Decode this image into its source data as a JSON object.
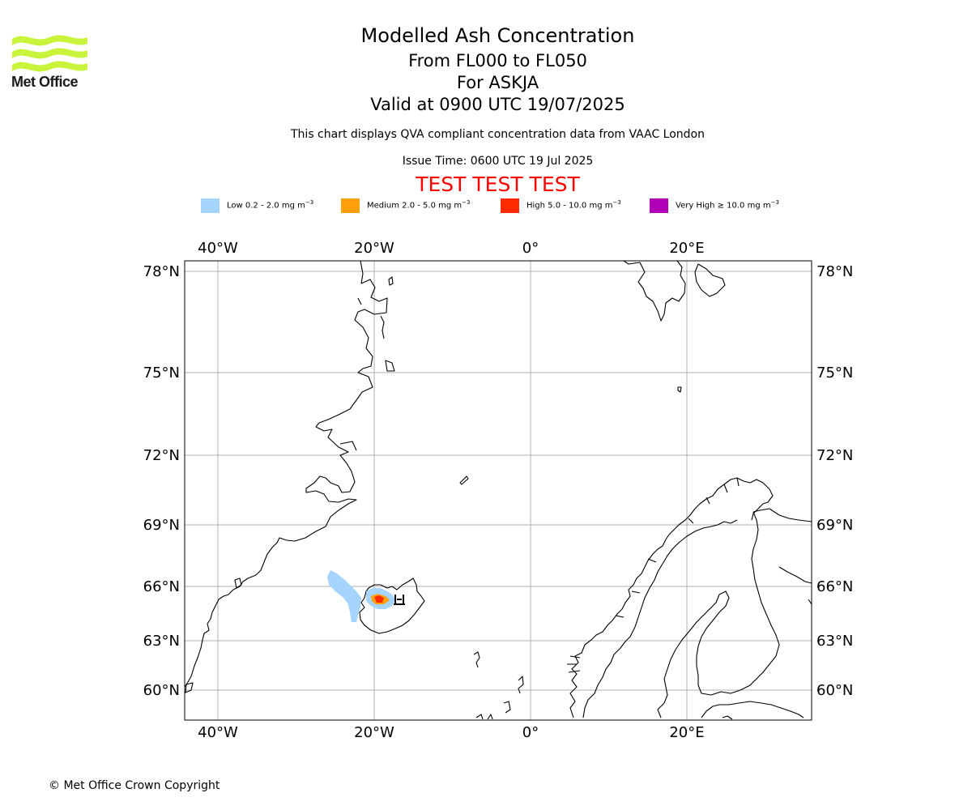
{
  "header": {
    "title": "Modelled Ash Concentration",
    "levels": "From FL000 to FL050",
    "volcano": "For ASKJA",
    "valid": "Valid at 0900 UTC 19/07/2025",
    "compliance": "This chart displays QVA compliant concentration data from VAAC London",
    "issue": "Issue Time: 0600 UTC 19 Jul 2025",
    "test_banner": "TEST TEST TEST"
  },
  "logo": {
    "text": "Met Office",
    "color": "#c8f53c"
  },
  "legend": [
    {
      "prefix": "Low 0.2 - 2.0 mg m",
      "color": "#a5d5ff"
    },
    {
      "prefix": "Medium 2.0 - 5.0 mg m",
      "color": "#ff9f0a"
    },
    {
      "prefix": "High 5.0 - 10.0 mg m",
      "color": "#ff2a00"
    },
    {
      "prefix": "Very High ≥ 10.0 mg m",
      "color": "#b000b8"
    }
  ],
  "legend_unit_exponent": "−3",
  "map": {
    "lon_labels": [
      "40°W",
      "20°W",
      "0°",
      "20°E"
    ],
    "lat_labels": [
      "78°N",
      "75°N",
      "72°N",
      "69°N",
      "66°N",
      "63°N",
      "60°N"
    ],
    "grid_color": "#b0b0b0"
  },
  "footer": {
    "copyright": "© Met Office Crown Copyright"
  }
}
